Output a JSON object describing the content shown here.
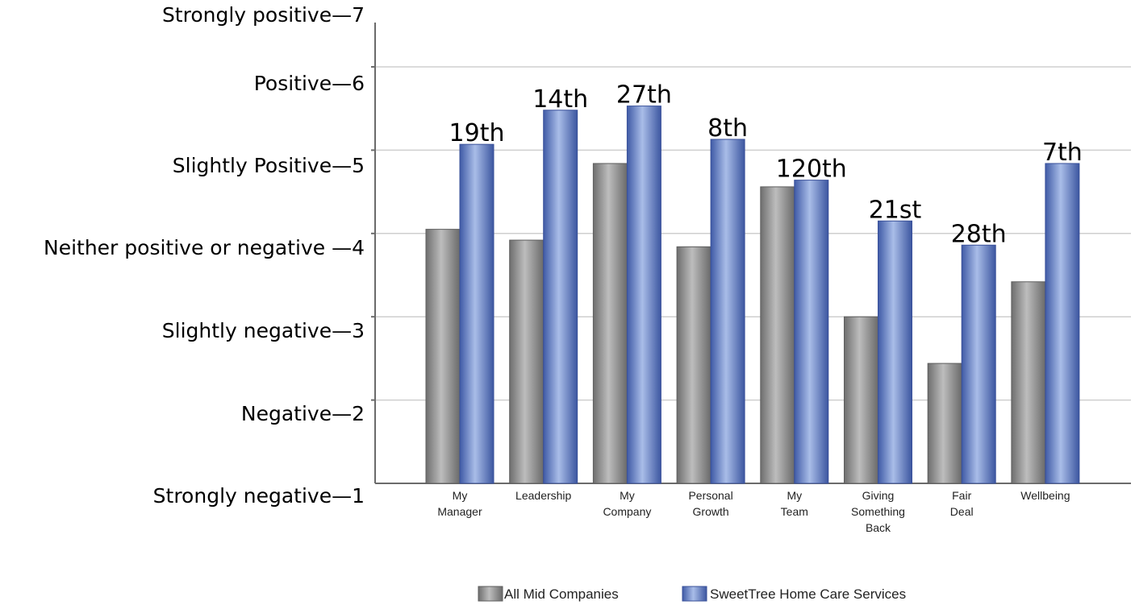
{
  "chart_data": {
    "type": "bar",
    "title": "",
    "xlabel": "",
    "ylabel": "",
    "ylim": [
      1,
      7
    ],
    "grid": true,
    "legend": "bottom",
    "y_ticks": [
      {
        "value": 7,
        "label": "Strongly positive—7"
      },
      {
        "value": 6,
        "label": "Positive—6"
      },
      {
        "value": 5,
        "label": "Slightly Positive—5"
      },
      {
        "value": 4,
        "label": "Neither positive or negative —4"
      },
      {
        "value": 3,
        "label": "Slightly negative—3"
      },
      {
        "value": 2,
        "label": "Negative—2"
      },
      {
        "value": 1,
        "label": "Strongly negative—1"
      }
    ],
    "categories": [
      [
        "My",
        "Manager"
      ],
      [
        "Leadership"
      ],
      [
        "My",
        "Company"
      ],
      [
        "Personal",
        "Growth"
      ],
      [
        "My",
        "Team"
      ],
      [
        "Giving",
        "Something",
        "Back"
      ],
      [
        "Fair",
        "Deal"
      ],
      [
        "Wellbeing"
      ]
    ],
    "series": [
      {
        "name": "All Mid Companies",
        "color": "#8c8c8c",
        "values": [
          4.05,
          3.92,
          4.84,
          3.84,
          4.56,
          3.0,
          2.44,
          3.42
        ]
      },
      {
        "name": "SweetTree Home Care Services",
        "color": "#4f6fbd",
        "values": [
          5.07,
          5.48,
          5.53,
          5.13,
          4.64,
          4.15,
          3.86,
          4.84
        ]
      }
    ],
    "annotations": [
      "19th",
      "14th",
      "27th",
      "8th",
      "120th",
      "21st",
      "28th",
      "7th"
    ]
  }
}
